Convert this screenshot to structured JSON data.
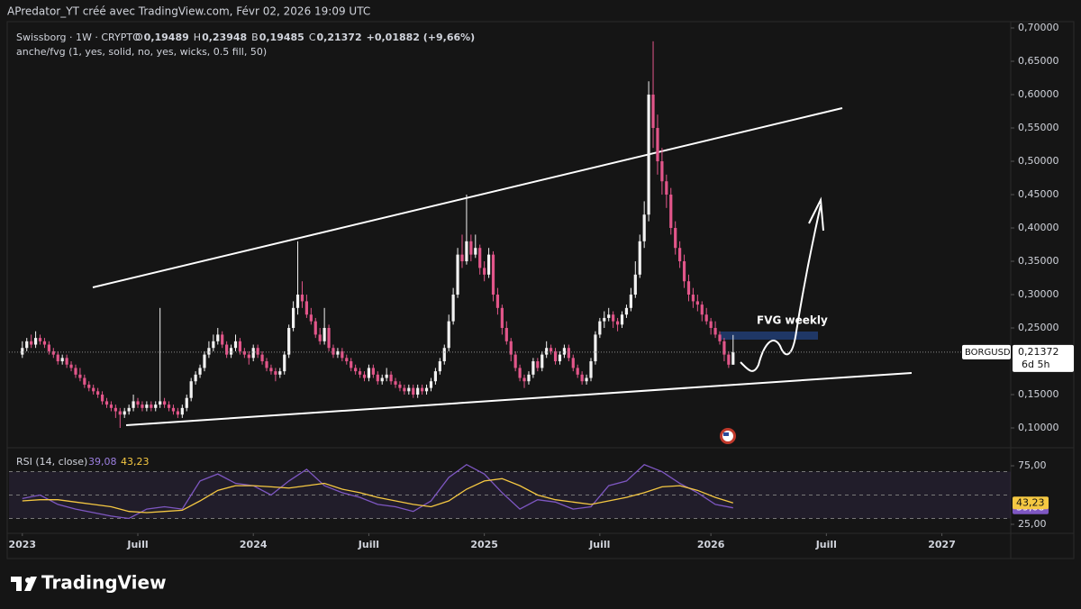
{
  "header": "APredator_YT créé avec TradingView.com, Févr 02, 2026 19:09 UTC",
  "footer": "TradingView",
  "chart_data": {
    "type": "candlestick",
    "symbol": "Swissborg · 1W · CRYPTO",
    "ohlc_legend": [
      [
        "O",
        "0,19489"
      ],
      [
        "H",
        "0,23948"
      ],
      [
        "B",
        "0,19485"
      ],
      [
        "C",
        "0,21372"
      ]
    ],
    "change": "+0,01882 (+9,66%)",
    "indicator": "anche/fvg (1, yes, solid, no, yes, wicks, 0.5 fill, 50)",
    "annotation": "FVG weekly",
    "symbol_tag": "BORGUSD",
    "countdown": "6d 5h",
    "price_label": {
      "value": 0.21372,
      "label": "0,21372"
    },
    "up_color": "#f2f2f2",
    "down_color": "#e2568a",
    "xlim": [
      -3,
      222.5
    ],
    "xticks": [
      {
        "value": 0,
        "label": "2023"
      },
      {
        "value": 26,
        "label": "Juill"
      },
      {
        "value": 52,
        "label": "2024"
      },
      {
        "value": 78,
        "label": "Juill"
      },
      {
        "value": 104,
        "label": "2025"
      },
      {
        "value": 130,
        "label": "Juill"
      },
      {
        "value": 155,
        "label": "2026"
      },
      {
        "value": 181,
        "label": "Juill"
      },
      {
        "value": 207,
        "label": "2027"
      }
    ],
    "ylim": [
      0.0703,
      0.7122
    ],
    "yticks": [
      {
        "value": 0.7,
        "label": "0,70000"
      },
      {
        "value": 0.65,
        "label": "0,65000"
      },
      {
        "value": 0.6,
        "label": "0,60000"
      },
      {
        "value": 0.55,
        "label": "0,55000"
      },
      {
        "value": 0.5,
        "label": "0,50000"
      },
      {
        "value": 0.45,
        "label": "0,45000"
      },
      {
        "value": 0.4,
        "label": "0,40000"
      },
      {
        "value": 0.35,
        "label": "0,35000"
      },
      {
        "value": 0.3,
        "label": "0,30000"
      },
      {
        "value": 0.25,
        "label": "0,25000"
      },
      {
        "value": 0.15,
        "label": "0,15000"
      },
      {
        "value": 0.1,
        "label": "0,10000"
      }
    ],
    "candles": [
      [
        0.21,
        0.23,
        0.205,
        0.22
      ],
      [
        0.22,
        0.235,
        0.215,
        0.23
      ],
      [
        0.23,
        0.24,
        0.22,
        0.225
      ],
      [
        0.225,
        0.245,
        0.22,
        0.235
      ],
      [
        0.235,
        0.24,
        0.225,
        0.23
      ],
      [
        0.23,
        0.235,
        0.22,
        0.225
      ],
      [
        0.225,
        0.23,
        0.21,
        0.215
      ],
      [
        0.215,
        0.22,
        0.205,
        0.21
      ],
      [
        0.21,
        0.215,
        0.195,
        0.2
      ],
      [
        0.2,
        0.21,
        0.195,
        0.205
      ],
      [
        0.205,
        0.21,
        0.19,
        0.195
      ],
      [
        0.195,
        0.2,
        0.185,
        0.19
      ],
      [
        0.19,
        0.195,
        0.175,
        0.18
      ],
      [
        0.18,
        0.19,
        0.17,
        0.175
      ],
      [
        0.175,
        0.18,
        0.16,
        0.165
      ],
      [
        0.165,
        0.17,
        0.155,
        0.16
      ],
      [
        0.16,
        0.165,
        0.15,
        0.155
      ],
      [
        0.155,
        0.16,
        0.145,
        0.15
      ],
      [
        0.15,
        0.155,
        0.135,
        0.14
      ],
      [
        0.14,
        0.145,
        0.13,
        0.135
      ],
      [
        0.135,
        0.14,
        0.125,
        0.13
      ],
      [
        0.13,
        0.135,
        0.115,
        0.125
      ],
      [
        0.125,
        0.13,
        0.1,
        0.12
      ],
      [
        0.12,
        0.13,
        0.115,
        0.125
      ],
      [
        0.125,
        0.135,
        0.12,
        0.13
      ],
      [
        0.13,
        0.15,
        0.125,
        0.14
      ],
      [
        0.14,
        0.145,
        0.13,
        0.135
      ],
      [
        0.135,
        0.14,
        0.125,
        0.13
      ],
      [
        0.13,
        0.14,
        0.125,
        0.135
      ],
      [
        0.135,
        0.14,
        0.125,
        0.13
      ],
      [
        0.13,
        0.14,
        0.125,
        0.135
      ],
      [
        0.135,
        0.28,
        0.13,
        0.14
      ],
      [
        0.14,
        0.145,
        0.13,
        0.135
      ],
      [
        0.135,
        0.14,
        0.125,
        0.13
      ],
      [
        0.13,
        0.135,
        0.12,
        0.125
      ],
      [
        0.125,
        0.13,
        0.115,
        0.12
      ],
      [
        0.12,
        0.135,
        0.115,
        0.13
      ],
      [
        0.13,
        0.15,
        0.125,
        0.145
      ],
      [
        0.145,
        0.175,
        0.14,
        0.17
      ],
      [
        0.17,
        0.185,
        0.165,
        0.18
      ],
      [
        0.18,
        0.195,
        0.175,
        0.19
      ],
      [
        0.19,
        0.215,
        0.185,
        0.21
      ],
      [
        0.21,
        0.23,
        0.205,
        0.22
      ],
      [
        0.22,
        0.24,
        0.215,
        0.23
      ],
      [
        0.23,
        0.25,
        0.225,
        0.24
      ],
      [
        0.24,
        0.245,
        0.22,
        0.225
      ],
      [
        0.225,
        0.23,
        0.205,
        0.21
      ],
      [
        0.21,
        0.225,
        0.205,
        0.22
      ],
      [
        0.22,
        0.24,
        0.215,
        0.23
      ],
      [
        0.23,
        0.235,
        0.21,
        0.215
      ],
      [
        0.215,
        0.22,
        0.205,
        0.21
      ],
      [
        0.21,
        0.215,
        0.195,
        0.205
      ],
      [
        0.205,
        0.225,
        0.2,
        0.22
      ],
      [
        0.22,
        0.225,
        0.205,
        0.21
      ],
      [
        0.21,
        0.215,
        0.195,
        0.2
      ],
      [
        0.2,
        0.205,
        0.185,
        0.19
      ],
      [
        0.19,
        0.195,
        0.18,
        0.185
      ],
      [
        0.185,
        0.19,
        0.17,
        0.18
      ],
      [
        0.18,
        0.19,
        0.175,
        0.185
      ],
      [
        0.185,
        0.215,
        0.18,
        0.21
      ],
      [
        0.21,
        0.255,
        0.205,
        0.25
      ],
      [
        0.25,
        0.29,
        0.245,
        0.28
      ],
      [
        0.28,
        0.38,
        0.27,
        0.3
      ],
      [
        0.3,
        0.32,
        0.28,
        0.29
      ],
      [
        0.29,
        0.3,
        0.265,
        0.27
      ],
      [
        0.27,
        0.28,
        0.255,
        0.26
      ],
      [
        0.26,
        0.265,
        0.235,
        0.24
      ],
      [
        0.24,
        0.25,
        0.225,
        0.23
      ],
      [
        0.23,
        0.28,
        0.225,
        0.25
      ],
      [
        0.25,
        0.255,
        0.215,
        0.22
      ],
      [
        0.22,
        0.225,
        0.205,
        0.21
      ],
      [
        0.21,
        0.22,
        0.205,
        0.215
      ],
      [
        0.215,
        0.22,
        0.2,
        0.205
      ],
      [
        0.205,
        0.21,
        0.195,
        0.2
      ],
      [
        0.2,
        0.205,
        0.185,
        0.19
      ],
      [
        0.19,
        0.195,
        0.18,
        0.185
      ],
      [
        0.185,
        0.19,
        0.175,
        0.18
      ],
      [
        0.18,
        0.185,
        0.17,
        0.175
      ],
      [
        0.175,
        0.195,
        0.17,
        0.19
      ],
      [
        0.19,
        0.195,
        0.175,
        0.18
      ],
      [
        0.18,
        0.185,
        0.165,
        0.17
      ],
      [
        0.17,
        0.18,
        0.165,
        0.175
      ],
      [
        0.175,
        0.19,
        0.17,
        0.18
      ],
      [
        0.18,
        0.185,
        0.165,
        0.17
      ],
      [
        0.17,
        0.175,
        0.16,
        0.165
      ],
      [
        0.165,
        0.17,
        0.155,
        0.16
      ],
      [
        0.16,
        0.165,
        0.15,
        0.155
      ],
      [
        0.155,
        0.165,
        0.15,
        0.16
      ],
      [
        0.16,
        0.165,
        0.145,
        0.15
      ],
      [
        0.15,
        0.165,
        0.145,
        0.16
      ],
      [
        0.16,
        0.165,
        0.15,
        0.155
      ],
      [
        0.155,
        0.165,
        0.15,
        0.16
      ],
      [
        0.16,
        0.175,
        0.155,
        0.17
      ],
      [
        0.17,
        0.19,
        0.165,
        0.185
      ],
      [
        0.185,
        0.205,
        0.18,
        0.2
      ],
      [
        0.2,
        0.225,
        0.195,
        0.22
      ],
      [
        0.22,
        0.27,
        0.215,
        0.26
      ],
      [
        0.26,
        0.31,
        0.255,
        0.3
      ],
      [
        0.3,
        0.37,
        0.295,
        0.36
      ],
      [
        0.36,
        0.39,
        0.34,
        0.35
      ],
      [
        0.35,
        0.45,
        0.345,
        0.38
      ],
      [
        0.38,
        0.39,
        0.35,
        0.36
      ],
      [
        0.36,
        0.39,
        0.355,
        0.37
      ],
      [
        0.37,
        0.375,
        0.33,
        0.34
      ],
      [
        0.34,
        0.35,
        0.32,
        0.33
      ],
      [
        0.33,
        0.37,
        0.325,
        0.36
      ],
      [
        0.36,
        0.365,
        0.29,
        0.3
      ],
      [
        0.3,
        0.31,
        0.27,
        0.28
      ],
      [
        0.28,
        0.285,
        0.24,
        0.25
      ],
      [
        0.25,
        0.26,
        0.225,
        0.23
      ],
      [
        0.23,
        0.235,
        0.2,
        0.21
      ],
      [
        0.21,
        0.215,
        0.185,
        0.19
      ],
      [
        0.19,
        0.195,
        0.17,
        0.175
      ],
      [
        0.175,
        0.18,
        0.16,
        0.17
      ],
      [
        0.17,
        0.185,
        0.165,
        0.18
      ],
      [
        0.18,
        0.205,
        0.175,
        0.2
      ],
      [
        0.2,
        0.205,
        0.185,
        0.19
      ],
      [
        0.19,
        0.215,
        0.185,
        0.21
      ],
      [
        0.21,
        0.23,
        0.205,
        0.22
      ],
      [
        0.22,
        0.225,
        0.21,
        0.215
      ],
      [
        0.215,
        0.22,
        0.195,
        0.2
      ],
      [
        0.2,
        0.215,
        0.195,
        0.21
      ],
      [
        0.21,
        0.225,
        0.205,
        0.22
      ],
      [
        0.22,
        0.225,
        0.2,
        0.205
      ],
      [
        0.205,
        0.21,
        0.185,
        0.19
      ],
      [
        0.19,
        0.195,
        0.175,
        0.18
      ],
      [
        0.18,
        0.185,
        0.165,
        0.17
      ],
      [
        0.17,
        0.18,
        0.165,
        0.175
      ],
      [
        0.175,
        0.205,
        0.17,
        0.2
      ],
      [
        0.2,
        0.245,
        0.195,
        0.24
      ],
      [
        0.24,
        0.265,
        0.235,
        0.26
      ],
      [
        0.26,
        0.275,
        0.25,
        0.265
      ],
      [
        0.265,
        0.28,
        0.26,
        0.27
      ],
      [
        0.27,
        0.275,
        0.25,
        0.26
      ],
      [
        0.26,
        0.265,
        0.245,
        0.255
      ],
      [
        0.255,
        0.275,
        0.25,
        0.27
      ],
      [
        0.27,
        0.285,
        0.265,
        0.28
      ],
      [
        0.28,
        0.31,
        0.275,
        0.3
      ],
      [
        0.3,
        0.35,
        0.295,
        0.33
      ],
      [
        0.33,
        0.39,
        0.325,
        0.38
      ],
      [
        0.38,
        0.44,
        0.37,
        0.42
      ],
      [
        0.42,
        0.62,
        0.41,
        0.6
      ],
      [
        0.6,
        0.68,
        0.52,
        0.55
      ],
      [
        0.55,
        0.57,
        0.48,
        0.5
      ],
      [
        0.5,
        0.52,
        0.45,
        0.47
      ],
      [
        0.47,
        0.48,
        0.43,
        0.45
      ],
      [
        0.45,
        0.46,
        0.39,
        0.4
      ],
      [
        0.4,
        0.41,
        0.36,
        0.37
      ],
      [
        0.37,
        0.38,
        0.34,
        0.35
      ],
      [
        0.35,
        0.36,
        0.31,
        0.32
      ],
      [
        0.32,
        0.33,
        0.29,
        0.3
      ],
      [
        0.3,
        0.31,
        0.28,
        0.29
      ],
      [
        0.29,
        0.3,
        0.275,
        0.285
      ],
      [
        0.285,
        0.29,
        0.26,
        0.27
      ],
      [
        0.27,
        0.28,
        0.255,
        0.26
      ],
      [
        0.26,
        0.265,
        0.24,
        0.25
      ],
      [
        0.25,
        0.26,
        0.235,
        0.24
      ],
      [
        0.24,
        0.245,
        0.225,
        0.23
      ],
      [
        0.23,
        0.235,
        0.2,
        0.21
      ],
      [
        0.21,
        0.215,
        0.19,
        0.19489
      ],
      [
        0.19489,
        0.23948,
        0.19485,
        0.21372
      ]
    ],
    "rsi": {
      "title": "RSI (14, close)",
      "ylim": [
        17.3,
        88.1
      ],
      "yticks": [
        {
          "value": 75,
          "label": "75,00"
        },
        {
          "value": 25,
          "label": "25,00"
        }
      ],
      "levels": [
        70,
        50,
        30
      ],
      "band_color": "#7e57c2",
      "x": [
        0,
        4,
        8,
        12,
        16,
        20,
        24,
        28,
        32,
        36,
        40,
        44,
        48,
        52,
        56,
        60,
        64,
        68,
        72,
        76,
        80,
        84,
        88,
        92,
        96,
        100,
        104,
        108,
        112,
        116,
        120,
        124,
        128,
        132,
        136,
        140,
        144,
        148,
        152,
        156,
        160
      ],
      "series": [
        {
          "color": "#7e57c2",
          "last_label": "39,08",
          "values": [
            47,
            50,
            42,
            38,
            35,
            32,
            30,
            38,
            40,
            38,
            62,
            68,
            60,
            58,
            50,
            62,
            72,
            58,
            52,
            48,
            42,
            40,
            36,
            45,
            65,
            76,
            68,
            52,
            38,
            46,
            44,
            38,
            40,
            58,
            62,
            76,
            70,
            60,
            52,
            42,
            39.08
          ]
        },
        {
          "color": "#f5c842",
          "last_label": "43,23",
          "values": [
            45,
            46,
            46,
            44,
            42,
            40,
            36,
            35,
            36,
            37,
            45,
            54,
            58,
            58,
            57,
            56,
            58,
            60,
            55,
            52,
            48,
            45,
            42,
            40,
            45,
            55,
            62,
            64,
            58,
            50,
            46,
            44,
            42,
            45,
            48,
            52,
            57,
            58,
            54,
            48,
            43.23
          ]
        }
      ]
    }
  }
}
